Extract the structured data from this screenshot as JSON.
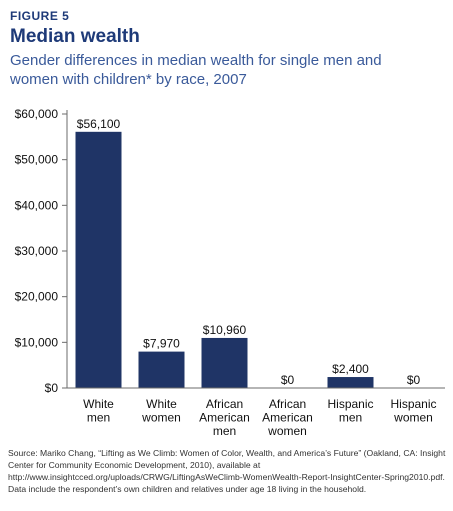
{
  "figure_label": "FIGURE 5",
  "chart_data": {
    "type": "bar",
    "title": "Median wealth",
    "subtitle": "Gender differences in median wealth for single men and women with children* by race, 2007",
    "categories": [
      [
        "White",
        "men"
      ],
      [
        "White",
        "women"
      ],
      [
        "African",
        "American",
        "men"
      ],
      [
        "African",
        "American",
        "women"
      ],
      [
        "Hispanic",
        "men"
      ],
      [
        "Hispanic",
        "women"
      ]
    ],
    "values": [
      56100,
      7970,
      10960,
      0,
      2400,
      0
    ],
    "value_labels": [
      "$56,100",
      "$7,970",
      "$10,960",
      "$0",
      "$2,400",
      "$0"
    ],
    "y_ticks": [
      0,
      10000,
      20000,
      30000,
      40000,
      50000,
      60000
    ],
    "y_tick_labels": [
      "$0",
      "$10,000",
      "$20,000",
      "$30,000",
      "$40,000",
      "$50,000",
      "$60,000"
    ],
    "ylim": [
      0,
      60000
    ],
    "xlabel": "",
    "ylabel": "",
    "grid": false,
    "bar_color": "#1f3466"
  },
  "source": "Source: Mariko Chang, “Lifting as We Climb: Women of Color, Wealth, and America’s Future” (Oakland, CA: Insight Center for Community Economic Development, 2010), available at http://www.insightcced.org/uploads/CRWG/LiftingAsWeClimb-WomenWealth-Report-InsightCenter-Spring2010.pdf. Data include the respondent’s own children and relatives under age 18 living in the household."
}
